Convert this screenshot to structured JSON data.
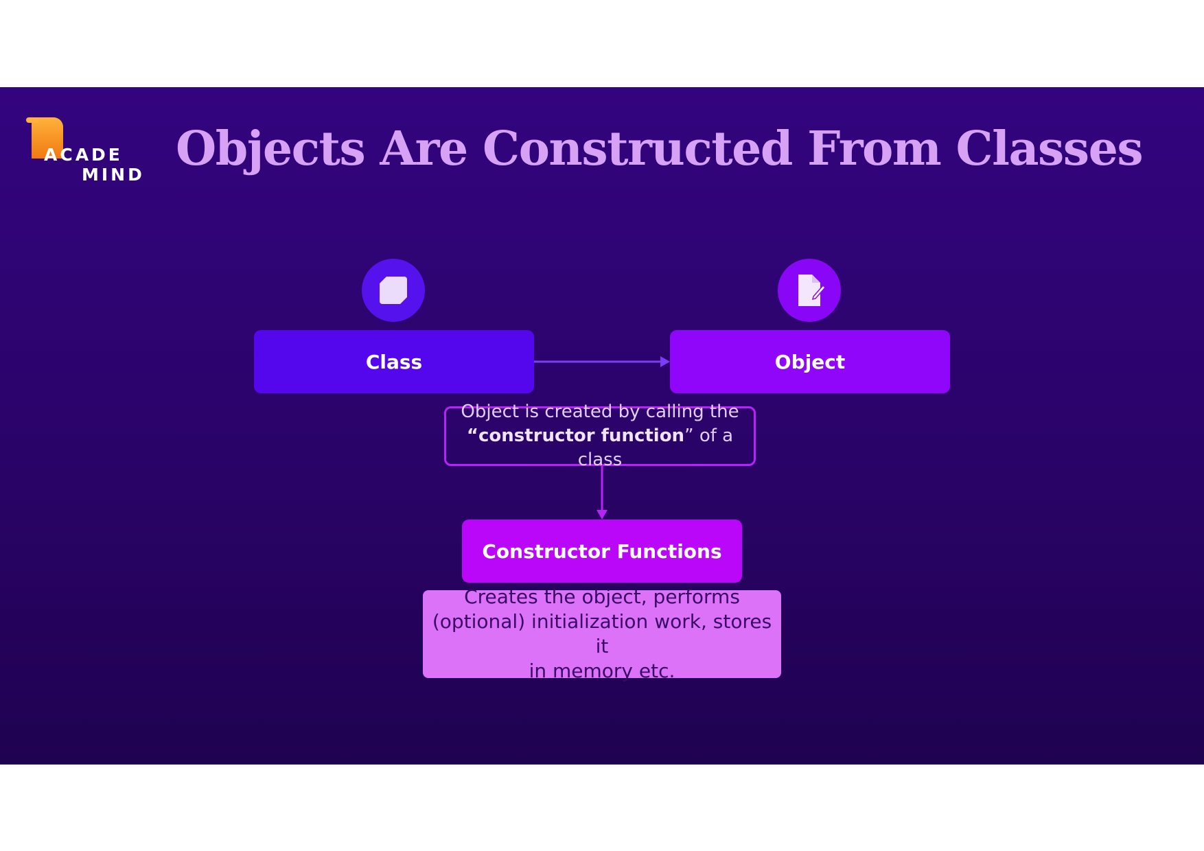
{
  "logo": {
    "line1": "ACADE",
    "line2": "MIND"
  },
  "title": "Objects Are Constructed From Classes",
  "diagram": {
    "class_label": "Class",
    "object_label": "Object",
    "note_line1": "Object is created by calling the",
    "note_open_quote": "“",
    "note_bold": "constructor function",
    "note_close": "” of a class",
    "constructor_label": "Constructor Functions",
    "desc_line1": "Creates the object, performs",
    "desc_line2": "(optional) initialization work, stores it",
    "desc_line3": "in memory etc."
  },
  "icons": {
    "class": "cube-icon",
    "object": "document-icon"
  },
  "colors": {
    "background_top": "#33047f",
    "background_bottom": "#1f0250",
    "title": "#d7a2f5",
    "class": "#5407ec",
    "object": "#9006fb",
    "constructor": "#bb07f9",
    "description": "#dc72f7",
    "logo_accent": "#f59a22"
  }
}
